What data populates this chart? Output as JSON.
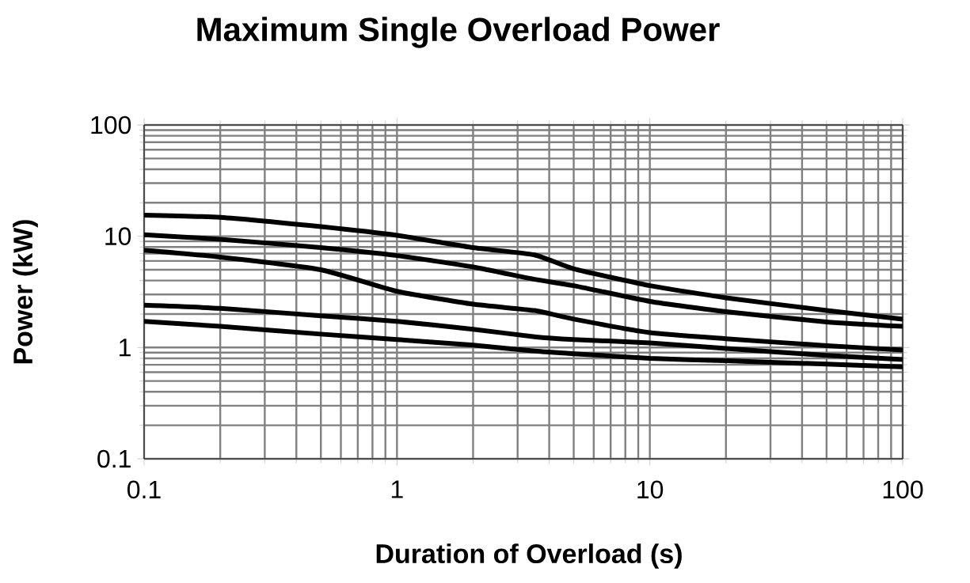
{
  "chart_data": {
    "type": "line",
    "title": "Maximum Single Overload Power",
    "xlabel": "Duration of Overload (s)",
    "ylabel": "Power (kW)",
    "x": [
      0.1,
      0.2,
      0.5,
      1,
      2,
      3.5,
      5,
      10,
      20,
      50,
      100
    ],
    "series": [
      {
        "color": "#000000",
        "values": [
          15.5,
          14.8,
          12.2,
          10.2,
          7.9,
          6.8,
          5.1,
          3.6,
          2.8,
          2.15,
          1.8
        ]
      },
      {
        "color": "#000000",
        "values": [
          10.3,
          9.4,
          7.9,
          6.7,
          5.3,
          4.1,
          3.6,
          2.6,
          2.1,
          1.7,
          1.55
        ]
      },
      {
        "color": "#000000",
        "values": [
          7.5,
          6.5,
          5.0,
          3.2,
          2.45,
          2.15,
          1.8,
          1.36,
          1.2,
          1.04,
          0.95
        ]
      },
      {
        "color": "#000000",
        "values": [
          2.4,
          2.25,
          1.93,
          1.72,
          1.46,
          1.25,
          1.18,
          1.1,
          0.98,
          0.85,
          0.78
        ]
      },
      {
        "color": "#000000",
        "values": [
          1.72,
          1.55,
          1.32,
          1.18,
          1.05,
          0.93,
          0.88,
          0.8,
          0.76,
          0.71,
          0.67
        ]
      }
    ],
    "xlim": [
      0.1,
      100
    ],
    "ylim": [
      0.1,
      100
    ],
    "xticks": [
      0.1,
      1,
      10,
      100
    ],
    "yticks": [
      0.1,
      1,
      10,
      100
    ],
    "log": "xy",
    "grid": true,
    "marker": "none",
    "line_style": "solid"
  }
}
